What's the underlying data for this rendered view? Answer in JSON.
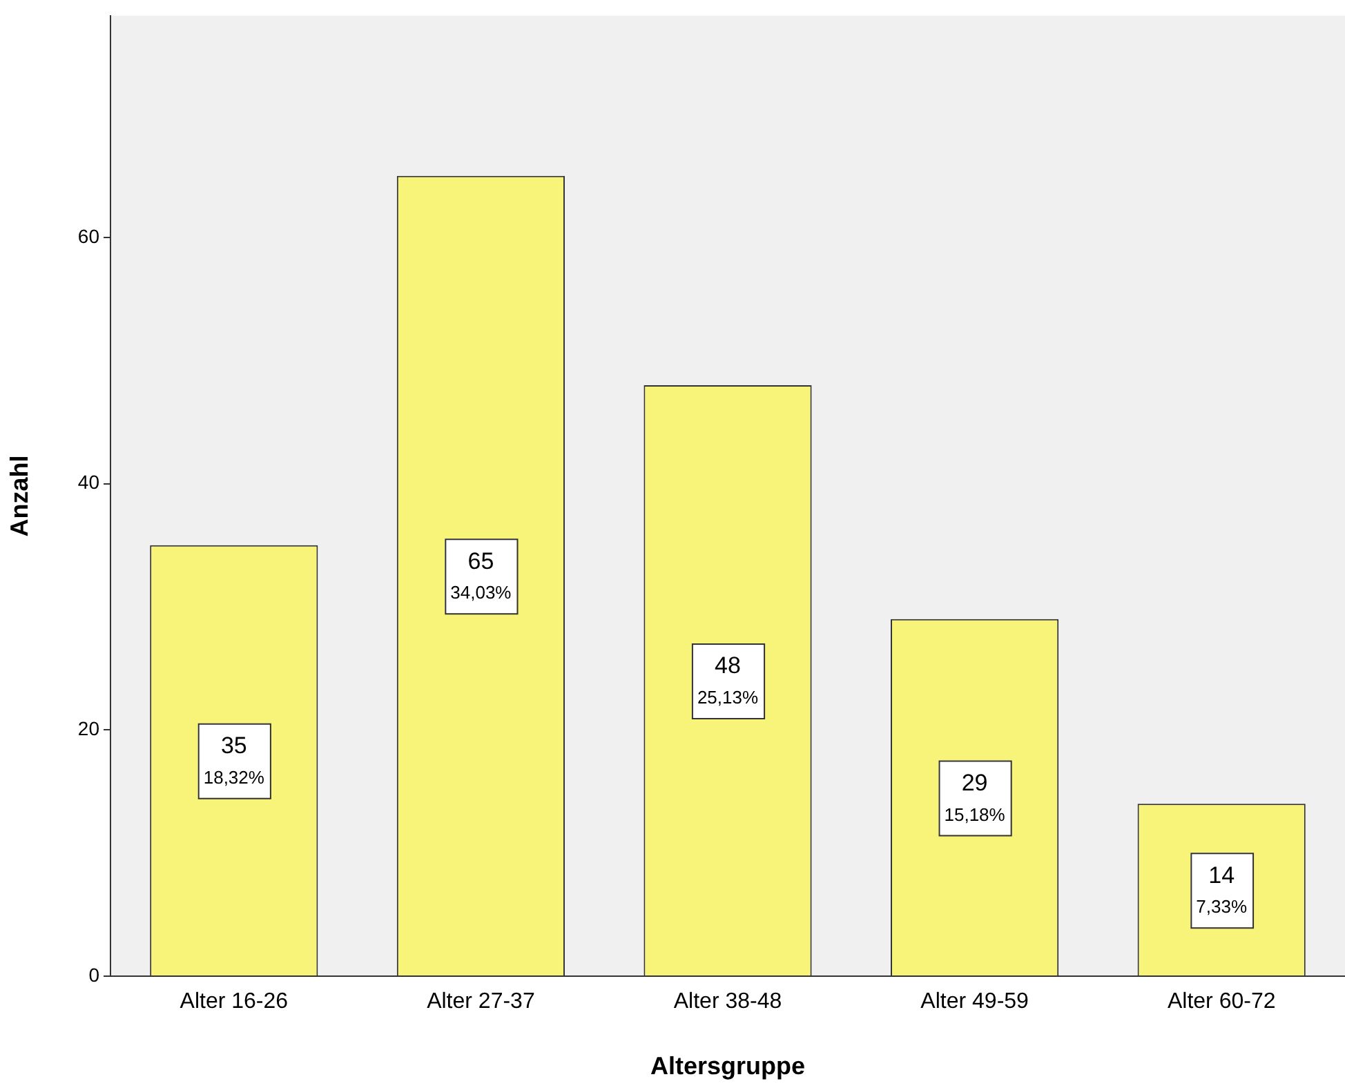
{
  "chart_data": {
    "type": "bar",
    "xlabel": "Altersgruppe",
    "ylabel": "Anzahl",
    "categories": [
      "Alter 16-26",
      "Alter 27-37",
      "Alter 38-48",
      "Alter 49-59",
      "Alter 60-72"
    ],
    "values": [
      35,
      65,
      48,
      29,
      14
    ],
    "value_labels": [
      "35\n18,32%",
      "65\n34,03%",
      "48\n25,13%",
      "29\n15,18%",
      "14\n7,33%"
    ],
    "color": "#f8f47a",
    "ylim": [
      0,
      78
    ],
    "yticks": [
      0,
      20,
      40,
      60
    ],
    "grid": false,
    "legend": false
  }
}
